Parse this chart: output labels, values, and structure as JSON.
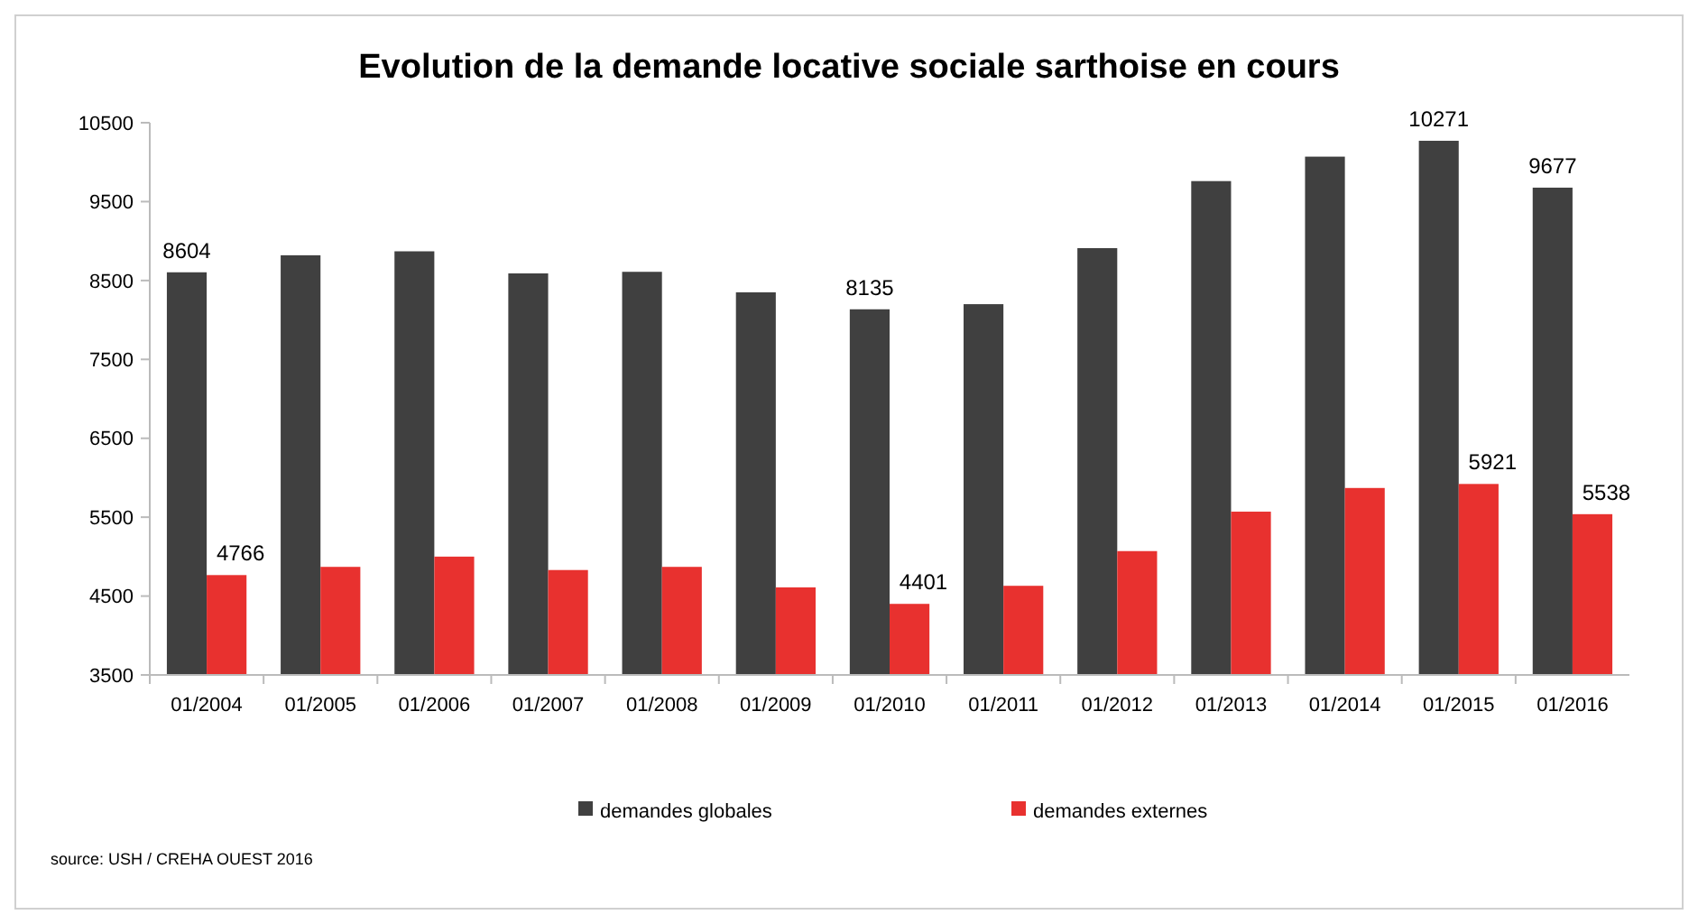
{
  "chart_data": {
    "type": "bar",
    "title": "Evolution de la demande locative sociale sarthoise en cours",
    "categories": [
      "01/2004",
      "01/2005",
      "01/2006",
      "01/2007",
      "01/2008",
      "01/2009",
      "01/2010",
      "01/2011",
      "01/2012",
      "01/2013",
      "01/2014",
      "01/2015",
      "01/2016"
    ],
    "series": [
      {
        "name": "demandes globales",
        "color": "#404040",
        "values": [
          8604,
          8820,
          8870,
          8590,
          8610,
          8350,
          8135,
          8200,
          8910,
          9760,
          10070,
          10271,
          9677
        ],
        "value_labels": [
          "8604",
          null,
          null,
          null,
          null,
          null,
          "8135",
          null,
          null,
          null,
          null,
          "10271",
          "9677"
        ]
      },
      {
        "name": "demandes externes",
        "color": "#e8312f",
        "values": [
          4766,
          4870,
          5000,
          4830,
          4870,
          4610,
          4401,
          4630,
          5070,
          5570,
          5870,
          5921,
          5538
        ],
        "value_labels": [
          "4766",
          null,
          null,
          null,
          null,
          null,
          "4401",
          null,
          null,
          null,
          null,
          "5921",
          "5538"
        ]
      }
    ],
    "ylim": [
      3500,
      10500
    ],
    "yticks": [
      3500,
      4500,
      5500,
      6500,
      7500,
      8500,
      9500,
      10500
    ],
    "legend": "bottom",
    "annotations": [
      "source: USH / CREHA OUEST 2016"
    ]
  }
}
